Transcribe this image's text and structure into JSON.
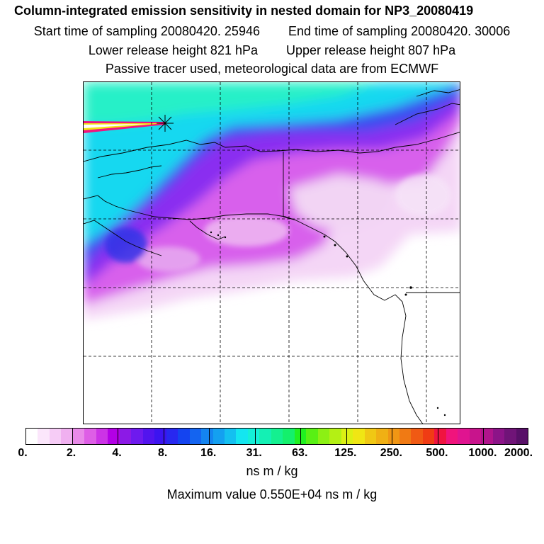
{
  "title": "Column-integrated emission sensitivity in nested domain for NP3_20080419",
  "start_time": "Start time of sampling 20080420. 25946",
  "end_time": "End time of sampling 20080420. 30006",
  "lower_height": "Lower release height  821 hPa",
  "upper_height": "Upper release height  807 hPa",
  "info": "Passive tracer used, meteorological data are from ECMWF",
  "colorbar": {
    "colors": [
      "#ffffff",
      "#fbe6fb",
      "#f6ccf6",
      "#f0b0f0",
      "#e98ae9",
      "#de5ee6",
      "#cc33e6",
      "#b300e6",
      "#8c1ae6",
      "#6e1aee",
      "#5214ee",
      "#3c14f0",
      "#2828f0",
      "#1444f0",
      "#1464f0",
      "#1484f0",
      "#14a0f0",
      "#14c0f0",
      "#14e6f0",
      "#14f0d8",
      "#14f0b4",
      "#14f090",
      "#14f06c",
      "#20f020",
      "#58f014",
      "#8cf014",
      "#b4f014",
      "#dcf014",
      "#f0e614",
      "#f0c814",
      "#f0b014",
      "#f09614",
      "#f07a14",
      "#f05a14",
      "#f03c14",
      "#f01440",
      "#f0147c",
      "#e01490",
      "#c8148c",
      "#b0148c",
      "#8c1488",
      "#701478",
      "#581068"
    ],
    "ticks": [
      "0.",
      "2.",
      "4.",
      "8.",
      "16.",
      "31.",
      "63.",
      "125.",
      "250.",
      "500.",
      "1000.",
      "2000."
    ]
  },
  "unit_label": "ns m / kg",
  "max_value": "Maximum value  0.550E+04 ns m / kg"
}
